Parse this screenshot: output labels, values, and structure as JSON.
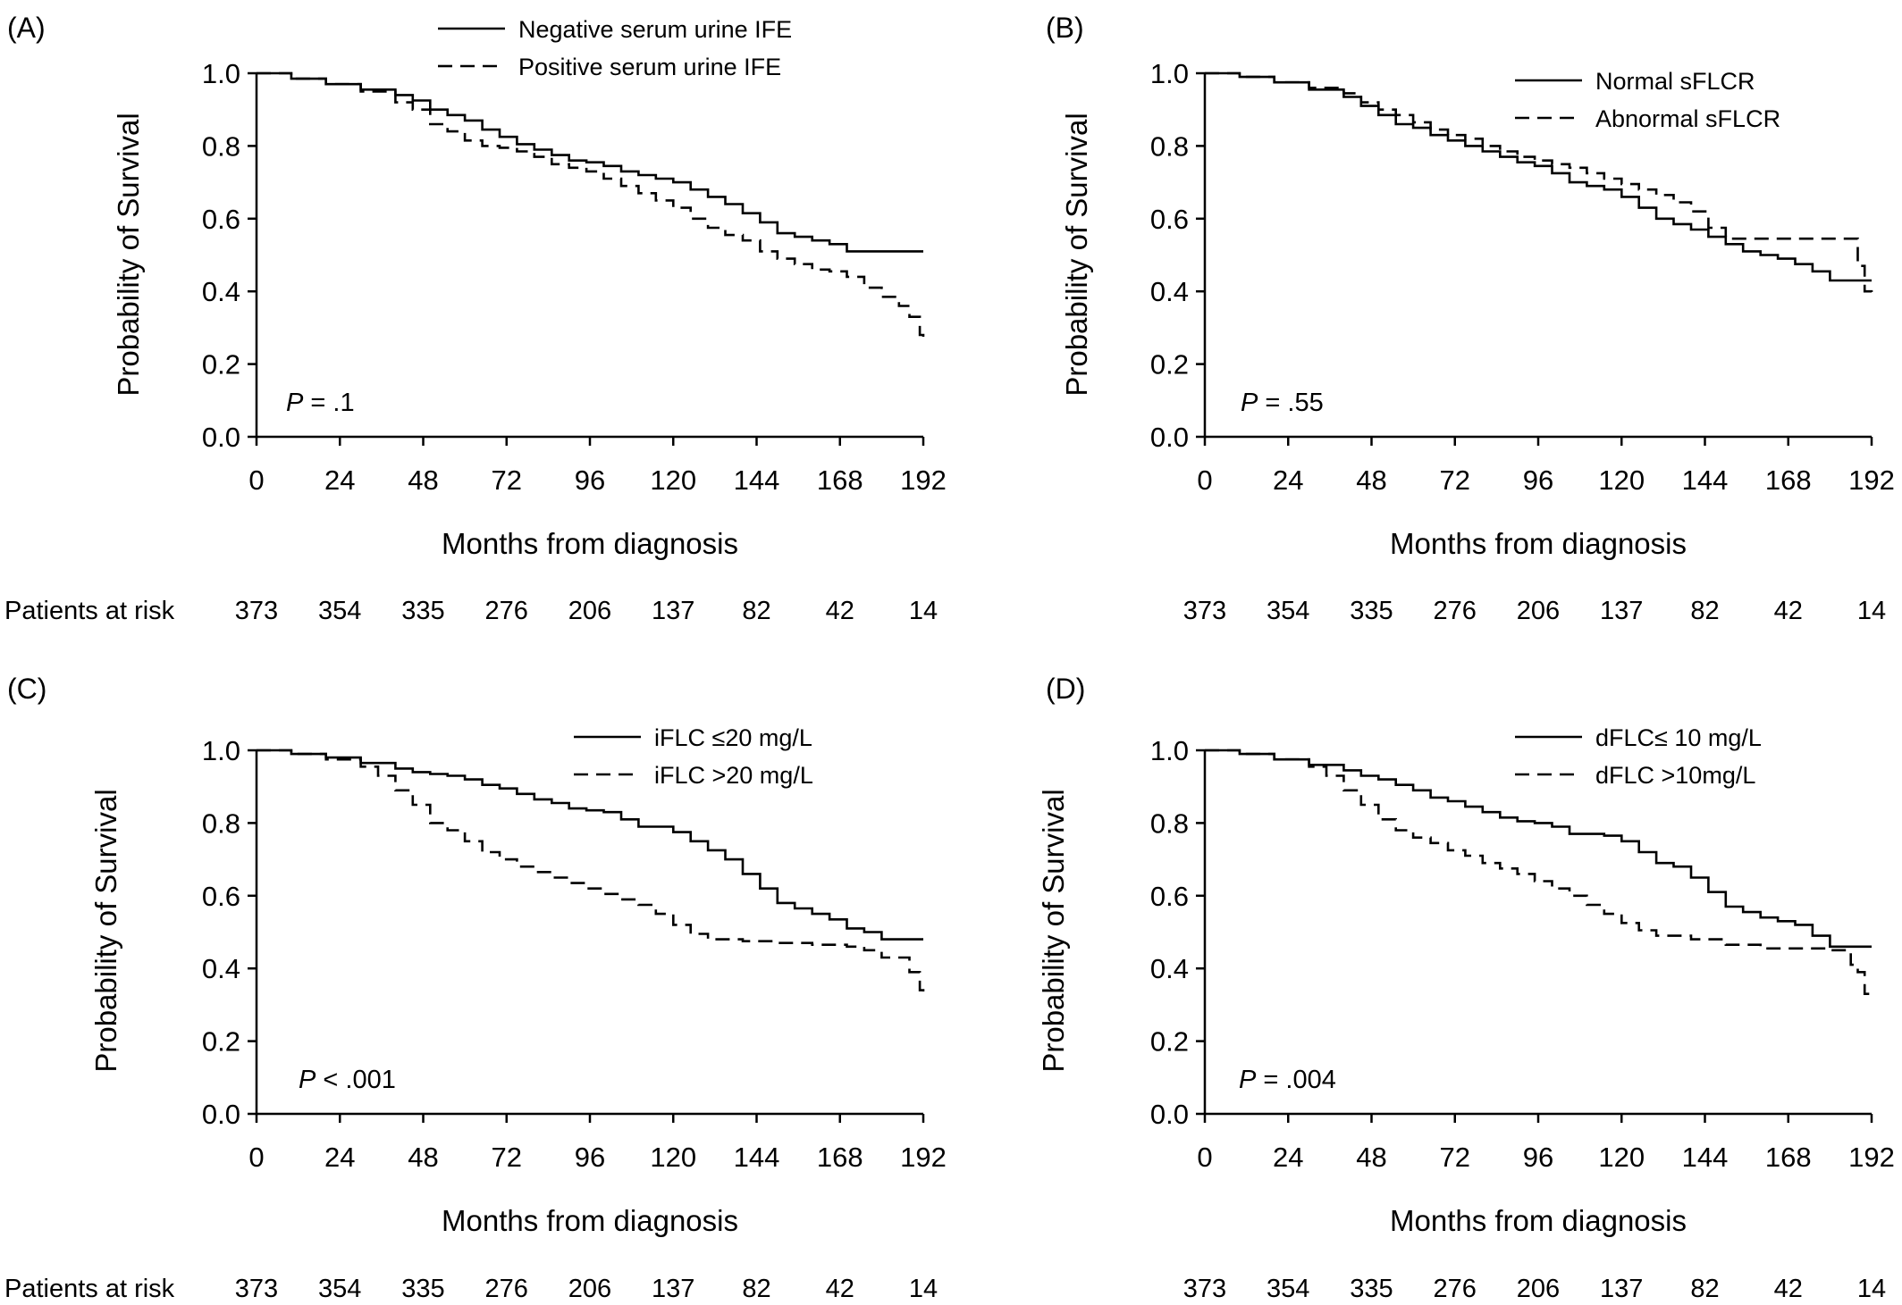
{
  "chart_data": [
    {
      "type": "line",
      "panel_label": "(A)",
      "xlabel": "Months from diagnosis",
      "ylabel": "Probability of Survival",
      "xlim": [
        0,
        192
      ],
      "ylim": [
        0,
        1.0
      ],
      "x_ticks": [
        "0",
        "24",
        "48",
        "72",
        "96",
        "120",
        "144",
        "168",
        "192"
      ],
      "y_ticks": [
        "0.0",
        "0.2",
        "0.4",
        "0.6",
        "0.8",
        "1.0"
      ],
      "legend_position": "top-center",
      "p_label": "P",
      "p_value": " = .1",
      "risk_label": "Patients at risk",
      "risk_numbers": [
        "373",
        "354",
        "335",
        "276",
        "206",
        "137",
        "82",
        "42",
        "14"
      ],
      "series": [
        {
          "name": "Negative serum urine IFE",
          "style": "solid",
          "x": [
            0,
            10,
            20,
            30,
            40,
            45,
            50,
            55,
            60,
            65,
            70,
            75,
            80,
            85,
            90,
            95,
            100,
            105,
            110,
            115,
            120,
            125,
            130,
            135,
            140,
            145,
            150,
            155,
            160,
            165,
            170,
            192
          ],
          "y": [
            1.0,
            0.985,
            0.97,
            0.955,
            0.94,
            0.925,
            0.9,
            0.885,
            0.87,
            0.845,
            0.825,
            0.805,
            0.79,
            0.775,
            0.76,
            0.755,
            0.745,
            0.73,
            0.72,
            0.71,
            0.7,
            0.68,
            0.66,
            0.64,
            0.615,
            0.59,
            0.56,
            0.55,
            0.54,
            0.53,
            0.51,
            0.51
          ]
        },
        {
          "name": "Positive serum urine IFE",
          "style": "dashed",
          "x": [
            0,
            10,
            20,
            30,
            40,
            45,
            50,
            55,
            60,
            65,
            70,
            75,
            80,
            85,
            90,
            95,
            100,
            105,
            110,
            115,
            120,
            125,
            130,
            135,
            140,
            145,
            150,
            155,
            160,
            165,
            170,
            175,
            180,
            185,
            188,
            191,
            192
          ],
          "y": [
            1.0,
            0.985,
            0.97,
            0.95,
            0.92,
            0.9,
            0.86,
            0.84,
            0.815,
            0.8,
            0.795,
            0.785,
            0.77,
            0.75,
            0.74,
            0.73,
            0.71,
            0.69,
            0.67,
            0.65,
            0.63,
            0.6,
            0.575,
            0.555,
            0.54,
            0.51,
            0.49,
            0.475,
            0.46,
            0.455,
            0.44,
            0.41,
            0.385,
            0.36,
            0.33,
            0.28,
            0.27
          ]
        }
      ]
    },
    {
      "type": "line",
      "panel_label": "(B)",
      "xlabel": "Months from diagnosis",
      "ylabel": "Probability of Survival",
      "xlim": [
        0,
        192
      ],
      "ylim": [
        0,
        1.0
      ],
      "x_ticks": [
        "0",
        "24",
        "48",
        "72",
        "96",
        "120",
        "144",
        "168",
        "192"
      ],
      "y_ticks": [
        "0.0",
        "0.2",
        "0.4",
        "0.6",
        "0.8",
        "1.0"
      ],
      "legend_position": "top-right",
      "p_label": "P",
      "p_value": " = .55",
      "risk_label": "",
      "risk_numbers": [
        "373",
        "354",
        "335",
        "276",
        "206",
        "137",
        "82",
        "42",
        "14"
      ],
      "series": [
        {
          "name": "Normal sFLCR",
          "style": "solid",
          "x": [
            0,
            10,
            20,
            30,
            40,
            45,
            50,
            55,
            60,
            65,
            70,
            75,
            80,
            85,
            90,
            95,
            100,
            105,
            110,
            115,
            120,
            125,
            130,
            135,
            140,
            145,
            150,
            155,
            160,
            165,
            170,
            175,
            180,
            192
          ],
          "y": [
            1.0,
            0.99,
            0.975,
            0.955,
            0.935,
            0.91,
            0.885,
            0.86,
            0.85,
            0.83,
            0.815,
            0.8,
            0.785,
            0.77,
            0.755,
            0.745,
            0.725,
            0.7,
            0.69,
            0.68,
            0.66,
            0.63,
            0.6,
            0.585,
            0.57,
            0.55,
            0.53,
            0.51,
            0.5,
            0.49,
            0.475,
            0.455,
            0.43,
            0.43
          ]
        },
        {
          "name": "Abnormal sFLCR",
          "style": "dashed",
          "x": [
            0,
            10,
            20,
            30,
            40,
            45,
            50,
            55,
            60,
            65,
            70,
            75,
            80,
            85,
            90,
            95,
            100,
            105,
            110,
            115,
            120,
            125,
            130,
            135,
            140,
            145,
            150,
            160,
            170,
            180,
            188,
            190,
            192
          ],
          "y": [
            1.0,
            0.99,
            0.975,
            0.96,
            0.945,
            0.92,
            0.9,
            0.885,
            0.865,
            0.845,
            0.83,
            0.82,
            0.8,
            0.785,
            0.77,
            0.76,
            0.75,
            0.74,
            0.725,
            0.71,
            0.695,
            0.68,
            0.665,
            0.645,
            0.62,
            0.575,
            0.545,
            0.545,
            0.545,
            0.545,
            0.47,
            0.4,
            0.38
          ]
        }
      ]
    },
    {
      "type": "line",
      "panel_label": "(C)",
      "xlabel": "Months from diagnosis",
      "ylabel": "Probability of Survival",
      "xlim": [
        0,
        192
      ],
      "ylim": [
        0,
        1.0
      ],
      "x_ticks": [
        "0",
        "24",
        "48",
        "72",
        "96",
        "120",
        "144",
        "168",
        "192"
      ],
      "y_ticks": [
        "0.0",
        "0.2",
        "0.4",
        "0.6",
        "0.8",
        "1.0"
      ],
      "legend_position": "top-right",
      "p_label": "P",
      "p_value": " < .001",
      "risk_label": "Patients at risk",
      "risk_numbers": [
        "373",
        "354",
        "335",
        "276",
        "206",
        "137",
        "82",
        "42",
        "14"
      ],
      "series": [
        {
          "name": "iFLC ≤20 mg/L",
          "style": "solid",
          "x": [
            0,
            10,
            20,
            30,
            40,
            45,
            50,
            55,
            60,
            65,
            70,
            75,
            80,
            85,
            90,
            95,
            100,
            105,
            110,
            115,
            120,
            125,
            130,
            135,
            140,
            145,
            150,
            155,
            160,
            165,
            170,
            175,
            180,
            192
          ],
          "y": [
            1.0,
            0.99,
            0.98,
            0.965,
            0.95,
            0.94,
            0.935,
            0.93,
            0.92,
            0.905,
            0.895,
            0.88,
            0.865,
            0.855,
            0.84,
            0.835,
            0.83,
            0.81,
            0.79,
            0.79,
            0.775,
            0.75,
            0.725,
            0.7,
            0.66,
            0.62,
            0.58,
            0.565,
            0.55,
            0.535,
            0.51,
            0.5,
            0.48,
            0.48
          ]
        },
        {
          "name": "iFLC >20 mg/L",
          "style": "dashed",
          "x": [
            0,
            10,
            20,
            30,
            35,
            40,
            45,
            50,
            55,
            60,
            65,
            70,
            75,
            80,
            85,
            90,
            95,
            100,
            105,
            110,
            115,
            120,
            125,
            130,
            140,
            150,
            160,
            170,
            175,
            180,
            185,
            188,
            191,
            192
          ],
          "y": [
            1.0,
            0.99,
            0.975,
            0.955,
            0.93,
            0.89,
            0.85,
            0.8,
            0.78,
            0.75,
            0.72,
            0.7,
            0.68,
            0.665,
            0.65,
            0.635,
            0.62,
            0.605,
            0.59,
            0.575,
            0.55,
            0.52,
            0.495,
            0.48,
            0.475,
            0.47,
            0.465,
            0.46,
            0.45,
            0.43,
            0.43,
            0.39,
            0.34,
            0.32
          ]
        }
      ]
    },
    {
      "type": "line",
      "panel_label": "(D)",
      "xlabel": "Months from diagnosis",
      "ylabel": "Probability of Survival",
      "xlim": [
        0,
        192
      ],
      "ylim": [
        0,
        1.0
      ],
      "x_ticks": [
        "0",
        "24",
        "48",
        "72",
        "96",
        "120",
        "144",
        "168",
        "192"
      ],
      "y_ticks": [
        "0.0",
        "0.2",
        "0.4",
        "0.6",
        "0.8",
        "1.0"
      ],
      "legend_position": "top-right",
      "p_label": "P",
      "p_value": " = .004",
      "risk_label": "",
      "risk_numbers": [
        "373",
        "354",
        "335",
        "276",
        "206",
        "137",
        "82",
        "42",
        "14"
      ],
      "series": [
        {
          "name": "dFLC≤ 10 mg/L",
          "style": "solid",
          "x": [
            0,
            10,
            20,
            30,
            40,
            45,
            50,
            55,
            60,
            65,
            70,
            75,
            80,
            85,
            90,
            95,
            100,
            105,
            110,
            115,
            120,
            125,
            130,
            135,
            140,
            145,
            150,
            155,
            160,
            165,
            170,
            175,
            180,
            192
          ],
          "y": [
            1.0,
            0.99,
            0.975,
            0.96,
            0.945,
            0.93,
            0.92,
            0.905,
            0.89,
            0.87,
            0.86,
            0.845,
            0.83,
            0.815,
            0.805,
            0.8,
            0.79,
            0.77,
            0.77,
            0.765,
            0.75,
            0.72,
            0.69,
            0.68,
            0.65,
            0.61,
            0.57,
            0.555,
            0.54,
            0.53,
            0.52,
            0.49,
            0.46,
            0.46
          ]
        },
        {
          "name": "dFLC >10mg/L",
          "style": "dashed",
          "x": [
            0,
            10,
            20,
            30,
            35,
            40,
            45,
            50,
            55,
            60,
            65,
            70,
            75,
            80,
            85,
            90,
            95,
            100,
            105,
            110,
            115,
            120,
            125,
            130,
            140,
            150,
            160,
            170,
            180,
            186,
            188,
            190,
            192
          ],
          "y": [
            1.0,
            0.99,
            0.975,
            0.955,
            0.93,
            0.89,
            0.85,
            0.81,
            0.78,
            0.76,
            0.745,
            0.725,
            0.71,
            0.69,
            0.675,
            0.66,
            0.64,
            0.62,
            0.6,
            0.575,
            0.55,
            0.525,
            0.505,
            0.49,
            0.48,
            0.465,
            0.455,
            0.455,
            0.45,
            0.41,
            0.39,
            0.33,
            0.32
          ]
        }
      ]
    }
  ]
}
